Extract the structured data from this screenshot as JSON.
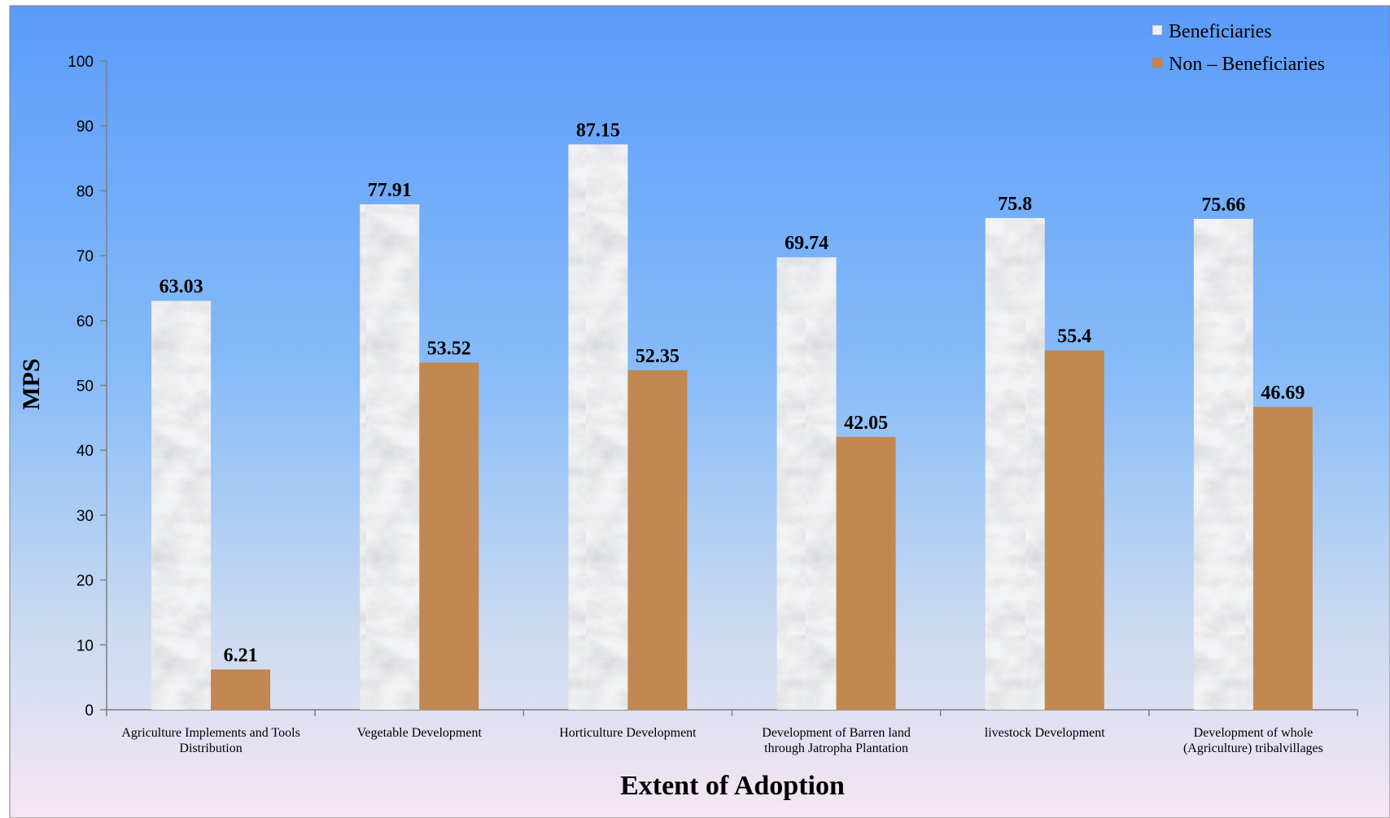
{
  "chart_data": {
    "type": "bar",
    "title": "",
    "xlabel": "Extent of Adoption",
    "ylabel": "MPS",
    "ylim": [
      0,
      100
    ],
    "yticks": [
      0,
      10,
      20,
      30,
      40,
      50,
      60,
      70,
      80,
      90,
      100
    ],
    "grid": false,
    "legend_position": "top-right",
    "categories": [
      [
        "Agriculture Implements and Tools",
        "Distribution"
      ],
      [
        "Vegetable Development"
      ],
      [
        "Horticulture Development"
      ],
      [
        "Development of Barren land",
        "through Jatropha Plantation"
      ],
      [
        "livestock Development"
      ],
      [
        "Development of whole",
        "(Agriculture) tribalvillages"
      ]
    ],
    "series": [
      {
        "name": "Beneficiaries",
        "values": [
          63.03,
          77.91,
          87.15,
          69.74,
          75.8,
          75.66
        ],
        "color": "#e6e8ea"
      },
      {
        "name": "Non – Beneficiaries",
        "values": [
          6.21,
          53.52,
          52.35,
          42.05,
          55.4,
          46.69
        ],
        "color": "#b5703a"
      }
    ],
    "value_labels": [
      [
        "63.03",
        "77.91",
        "87.15",
        "69.74",
        "75.8",
        "75.66"
      ],
      [
        "6.21",
        "53.52",
        "52.35",
        "42.05",
        "55.4",
        "46.69"
      ]
    ]
  }
}
